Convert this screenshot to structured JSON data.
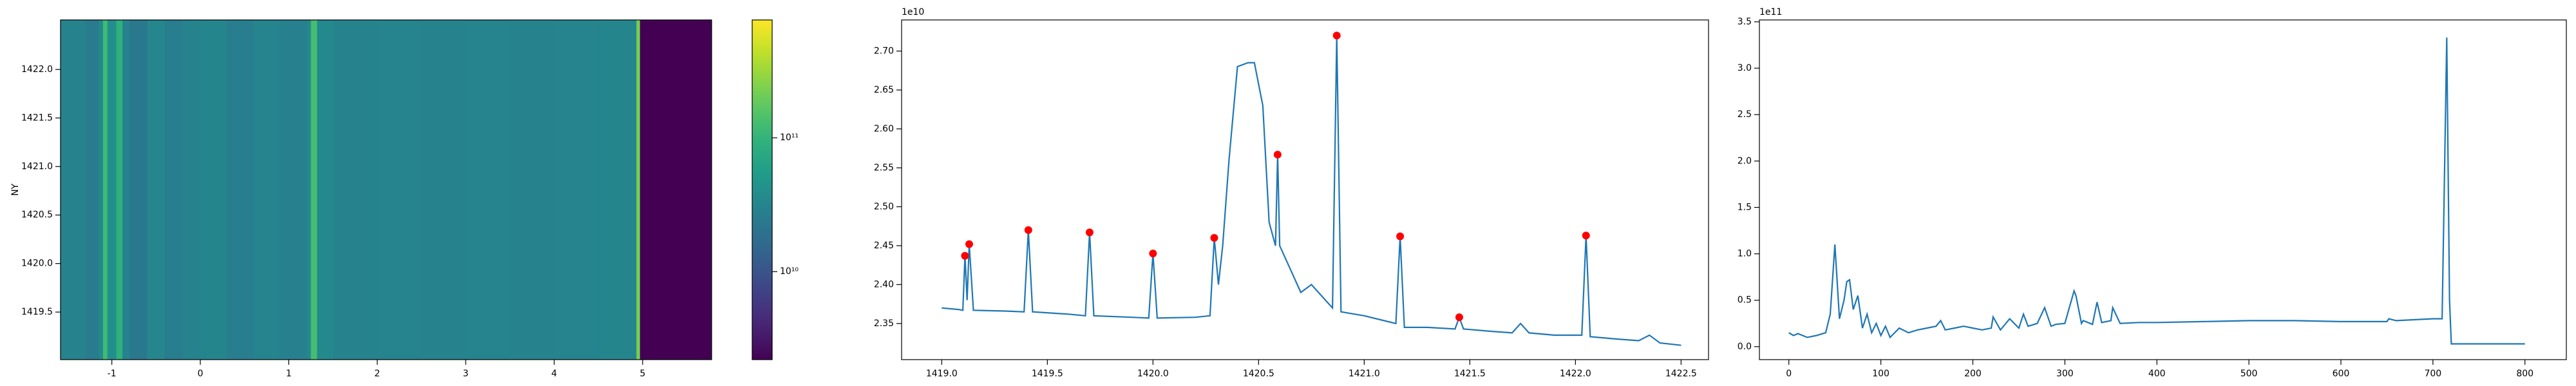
{
  "chart_data": [
    {
      "type": "heatmap",
      "ylabel": "NY",
      "x_edges": [
        -1.58,
        -1.3,
        -1.15,
        -1.1,
        -1.05,
        -0.95,
        -0.88,
        -0.8,
        -0.6,
        -0.4,
        -0.2,
        0,
        0.3,
        0.6,
        0.9,
        1.2,
        1.25,
        1.32,
        1.5,
        2,
        2.5,
        3,
        3.5,
        4,
        4.5,
        4.93,
        4.97,
        5.78
      ],
      "values": [
        30000000000.0,
        25000000000.0,
        35000000000.0,
        120000000000.0,
        40000000000.0,
        90000000000.0,
        30000000000.0,
        23000000000.0,
        33000000000.0,
        26000000000.0,
        30000000000.0,
        32000000000.0,
        27000000000.0,
        31000000000.0,
        28000000000.0,
        33000000000.0,
        130000000000.0,
        35000000000.0,
        30000000000.0,
        31000000000.0,
        30000000000.0,
        31000000000.0,
        30000000000.0,
        31000000000.0,
        32000000000.0,
        220000000000.0,
        2200000000.0
      ],
      "colormap": "viridis",
      "color_scale": "log",
      "clim": [
        2200000000.0,
        760000000000.0
      ],
      "cbar_ticks": [
        {
          "value": 10000000000.0,
          "label": "10¹⁰"
        },
        {
          "value": 100000000000.0,
          "label": "10¹¹"
        }
      ],
      "xlim": [
        -1.58,
        5.78
      ],
      "xticks": [
        -1,
        0,
        1,
        2,
        3,
        4,
        5
      ],
      "ylim": [
        1419.01,
        1422.51
      ],
      "yticks": [
        1419.5,
        {
          "value": 1420,
          "label": "1420.0"
        },
        1420.5,
        {
          "value": 1421,
          "label": "1421.0"
        },
        1421.5,
        {
          "value": 1422,
          "label": "1422.0"
        }
      ]
    },
    {
      "type": "line",
      "y_offset_label": "1e10",
      "color": "#1f77b4",
      "x": [
        1419.0,
        1419.08,
        1419.1,
        1419.11,
        1419.12,
        1419.13,
        1419.15,
        1419.3,
        1419.39,
        1419.41,
        1419.43,
        1419.6,
        1419.68,
        1419.7,
        1419.72,
        1419.9,
        1419.98,
        1420.0,
        1420.02,
        1420.2,
        1420.27,
        1420.29,
        1420.31,
        1420.33,
        1420.36,
        1420.4,
        1420.45,
        1420.48,
        1420.52,
        1420.55,
        1420.58,
        1420.59,
        1420.6,
        1420.65,
        1420.7,
        1420.75,
        1420.8,
        1420.85,
        1420.87,
        1420.89,
        1421.0,
        1421.15,
        1421.17,
        1421.19,
        1421.3,
        1421.43,
        1421.45,
        1421.47,
        1421.6,
        1421.7,
        1421.74,
        1421.78,
        1421.9,
        1422.03,
        1422.05,
        1422.07,
        1422.2,
        1422.3,
        1422.35,
        1422.4,
        1422.5
      ],
      "values": [
        2.37,
        2.368,
        2.367,
        2.437,
        2.38,
        2.452,
        2.367,
        2.366,
        2.365,
        2.47,
        2.365,
        2.362,
        2.36,
        2.467,
        2.36,
        2.358,
        2.357,
        2.44,
        2.357,
        2.358,
        2.36,
        2.46,
        2.4,
        2.45,
        2.56,
        2.68,
        2.685,
        2.685,
        2.63,
        2.48,
        2.45,
        2.567,
        2.45,
        2.42,
        2.39,
        2.4,
        2.385,
        2.37,
        2.72,
        2.365,
        2.36,
        2.35,
        2.462,
        2.345,
        2.345,
        2.343,
        2.358,
        2.343,
        2.34,
        2.338,
        2.35,
        2.338,
        2.335,
        2.335,
        2.463,
        2.333,
        2.33,
        2.328,
        2.335,
        2.325,
        2.322
      ],
      "peaks": {
        "color": "#ff0000",
        "x": [
          1419.11,
          1419.13,
          1419.41,
          1419.7,
          1420.0,
          1420.29,
          1420.59,
          1420.87,
          1421.17,
          1421.45,
          1422.05
        ],
        "values": [
          2.437,
          2.452,
          2.47,
          2.467,
          2.44,
          2.46,
          2.567,
          2.72,
          2.462,
          2.358,
          2.463
        ]
      },
      "xlim": [
        1418.81,
        1422.63
      ],
      "xticks": [
        {
          "value": 1419,
          "label": "1419.0"
        },
        1419.5,
        {
          "value": 1420,
          "label": "1420.0"
        },
        1420.5,
        {
          "value": 1421,
          "label": "1421.0"
        },
        1421.5,
        {
          "value": 1422,
          "label": "1422.0"
        },
        1422.5
      ],
      "ylim": [
        2.3036,
        2.74
      ],
      "yticks": [
        2.35,
        {
          "value": 2.4,
          "label": "2.40"
        },
        2.45,
        {
          "value": 2.5,
          "label": "2.50"
        },
        2.55,
        {
          "value": 2.6,
          "label": "2.60"
        },
        2.65,
        {
          "value": 2.7,
          "label": "2.70"
        }
      ]
    },
    {
      "type": "line",
      "y_offset_label": "1e11",
      "color": "#1f77b4",
      "x": [
        0,
        5,
        10,
        20,
        30,
        40,
        45,
        50,
        55,
        60,
        63,
        66,
        70,
        75,
        80,
        85,
        90,
        95,
        100,
        105,
        110,
        120,
        130,
        140,
        150,
        160,
        165,
        170,
        180,
        190,
        200,
        210,
        220,
        222,
        230,
        240,
        250,
        255,
        260,
        270,
        278,
        285,
        290,
        300,
        310,
        312,
        318,
        320,
        330,
        335,
        340,
        350,
        352,
        360,
        380,
        400,
        450,
        500,
        550,
        600,
        650,
        652,
        660,
        700,
        710,
        715,
        718,
        720,
        800
      ],
      "values": [
        0.15,
        0.12,
        0.14,
        0.1,
        0.12,
        0.15,
        0.35,
        1.1,
        0.3,
        0.5,
        0.7,
        0.72,
        0.4,
        0.55,
        0.2,
        0.35,
        0.15,
        0.25,
        0.12,
        0.22,
        0.1,
        0.2,
        0.15,
        0.18,
        0.2,
        0.22,
        0.28,
        0.18,
        0.2,
        0.22,
        0.2,
        0.18,
        0.2,
        0.32,
        0.18,
        0.3,
        0.2,
        0.35,
        0.22,
        0.25,
        0.42,
        0.22,
        0.24,
        0.25,
        0.6,
        0.55,
        0.25,
        0.28,
        0.24,
        0.48,
        0.26,
        0.28,
        0.42,
        0.25,
        0.26,
        0.26,
        0.27,
        0.28,
        0.28,
        0.27,
        0.27,
        0.3,
        0.28,
        0.3,
        0.3,
        3.33,
        0.5,
        0.03,
        0.03
      ],
      "xlim": [
        -32,
        845
      ],
      "xticks": [
        0,
        100,
        200,
        300,
        400,
        500,
        600,
        700,
        800
      ],
      "ylim": [
        -0.14,
        3.52
      ],
      "yticks": [
        {
          "value": 0,
          "label": "0.0"
        },
        0.5,
        {
          "value": 1,
          "label": "1.0"
        },
        1.5,
        {
          "value": 2,
          "label": "2.0"
        },
        2.5,
        {
          "value": 3,
          "label": "3.0"
        },
        3.5
      ]
    }
  ]
}
